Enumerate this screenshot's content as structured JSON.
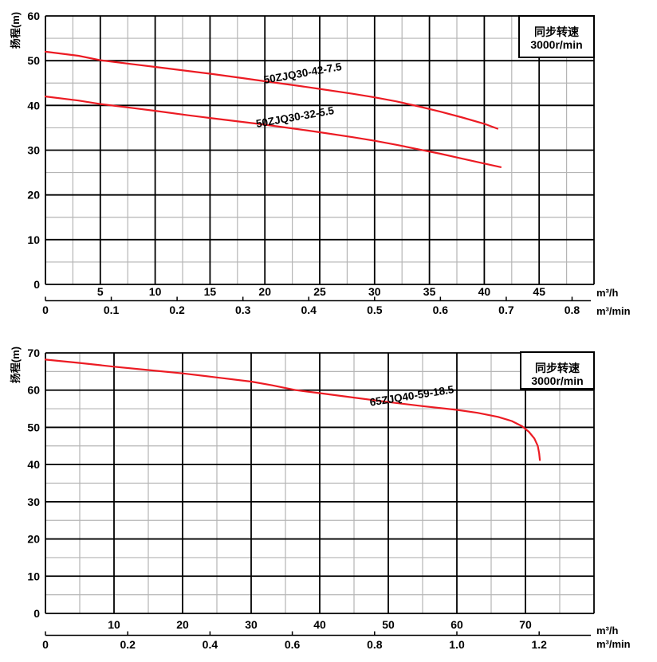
{
  "figure": {
    "background": "#ffffff",
    "colors": {
      "curve": "#ec1b23",
      "major_grid": "#000000",
      "minor_grid": "#b5b5b5",
      "text": "#000000",
      "legend_text": "#1470a8",
      "legend_bg": "#ffffff",
      "legend_border": "#000000"
    }
  },
  "chart_data": [
    {
      "type": "line",
      "title": "",
      "ylabel": "扬程(m)",
      "x_unit_primary": "m³/h",
      "x_unit_secondary": "m³/min",
      "legend_box": {
        "line1": "同步转速",
        "line2": "3000r/min",
        "position": "top-right"
      },
      "x_axis": {
        "min": 0,
        "max": 50,
        "major_step": 5,
        "minor_step": 2.5,
        "tick_labels": [
          5,
          10,
          15,
          20,
          25,
          30,
          35,
          40,
          45
        ]
      },
      "y_axis": {
        "min": 0,
        "max": 60,
        "major_step": 10,
        "minor_step": 5,
        "tick_labels": [
          0,
          10,
          20,
          30,
          40,
          50,
          60
        ]
      },
      "secondary_x_axis": {
        "unit": "m³/min",
        "scale_to_primary": 60,
        "tick_values": [
          0,
          0.1,
          0.2,
          0.3,
          0.4,
          0.5,
          0.6,
          0.7,
          0.8
        ],
        "tick_labels": [
          "0",
          "0.1",
          "0.2",
          "0.3",
          "0.4",
          "0.5",
          "0.6",
          "0.7",
          "0.8"
        ]
      },
      "grid": "major-and-minor",
      "series": [
        {
          "name": "50ZJQ30-42-7.5",
          "color": "#ec1b23",
          "points": [
            [
              0,
              52
            ],
            [
              3,
              51.1
            ],
            [
              5,
              50.1
            ],
            [
              8,
              49.2
            ],
            [
              10,
              48.6
            ],
            [
              13,
              47.7
            ],
            [
              15,
              47.1
            ],
            [
              18,
              46.1
            ],
            [
              20,
              45.4
            ],
            [
              23,
              44.4
            ],
            [
              25,
              43.7
            ],
            [
              28,
              42.6
            ],
            [
              30,
              41.8
            ],
            [
              32,
              40.9
            ],
            [
              34,
              39.8
            ],
            [
              36,
              38.6
            ],
            [
              38,
              37.3
            ],
            [
              40,
              35.9
            ],
            [
              41.2,
              34.8
            ]
          ],
          "label_anchor": {
            "x": 23.5,
            "y": 46.4
          },
          "label_angle": -10
        },
        {
          "name": "50ZJQ30-32-5.5",
          "color": "#ec1b23",
          "points": [
            [
              0,
              42
            ],
            [
              3,
              41.1
            ],
            [
              5,
              40.3
            ],
            [
              8,
              39.4
            ],
            [
              10,
              38.8
            ],
            [
              13,
              37.8
            ],
            [
              15,
              37.2
            ],
            [
              18,
              36.3
            ],
            [
              20,
              35.7
            ],
            [
              23,
              34.7
            ],
            [
              25,
              34
            ],
            [
              28,
              32.9
            ],
            [
              30,
              32.1
            ],
            [
              32,
              31.2
            ],
            [
              34,
              30.2
            ],
            [
              36,
              29.2
            ],
            [
              38,
              28.1
            ],
            [
              40,
              27
            ],
            [
              41.5,
              26.2
            ]
          ],
          "label_anchor": {
            "x": 22.8,
            "y": 36.6
          },
          "label_angle": -10
        }
      ]
    },
    {
      "type": "line",
      "title": "",
      "ylabel": "扬程(m)",
      "x_unit_primary": "m³/h",
      "x_unit_secondary": "m³/min",
      "legend_box": {
        "line1": "同步转速",
        "line2": "3000r/min",
        "position": "top-right"
      },
      "x_axis": {
        "min": 0,
        "max": 80,
        "major_step": 10,
        "minor_step": 5,
        "tick_labels": [
          10,
          20,
          30,
          40,
          50,
          60,
          70
        ]
      },
      "y_axis": {
        "min": 0,
        "max": 70,
        "major_step": 10,
        "minor_step": 5,
        "tick_labels": [
          0,
          10,
          20,
          30,
          40,
          50,
          60,
          70
        ]
      },
      "secondary_x_axis": {
        "unit": "m³/min",
        "scale_to_primary": 60,
        "tick_values": [
          0,
          0.2,
          0.4,
          0.6,
          0.8,
          1.0,
          1.2
        ],
        "tick_labels": [
          "0",
          "0.2",
          "0.4",
          "0.6",
          "0.8",
          "1.0",
          "1.2"
        ]
      },
      "grid": "major-and-minor",
      "series": [
        {
          "name": "65ZJQ40-59-18.5",
          "color": "#ec1b23",
          "points": [
            [
              0,
              68.2
            ],
            [
              5,
              67.3
            ],
            [
              10,
              66.3
            ],
            [
              15,
              65.4
            ],
            [
              20,
              64.5
            ],
            [
              25,
              63.4
            ],
            [
              30,
              62.3
            ],
            [
              33,
              61.3
            ],
            [
              36.5,
              60
            ],
            [
              40,
              59.2
            ],
            [
              45,
              58
            ],
            [
              50,
              56.8
            ],
            [
              55,
              55.7
            ],
            [
              60,
              54.7
            ],
            [
              63,
              53.9
            ],
            [
              66,
              52.8
            ],
            [
              68,
              51.7
            ],
            [
              69.5,
              50.3
            ],
            [
              70.5,
              48.8
            ],
            [
              71.3,
              47
            ],
            [
              71.8,
              45
            ],
            [
              72,
              43
            ],
            [
              72.1,
              41.2
            ]
          ],
          "label_anchor": {
            "x": 53.5,
            "y": 57.5
          },
          "label_angle": -9
        }
      ]
    }
  ]
}
